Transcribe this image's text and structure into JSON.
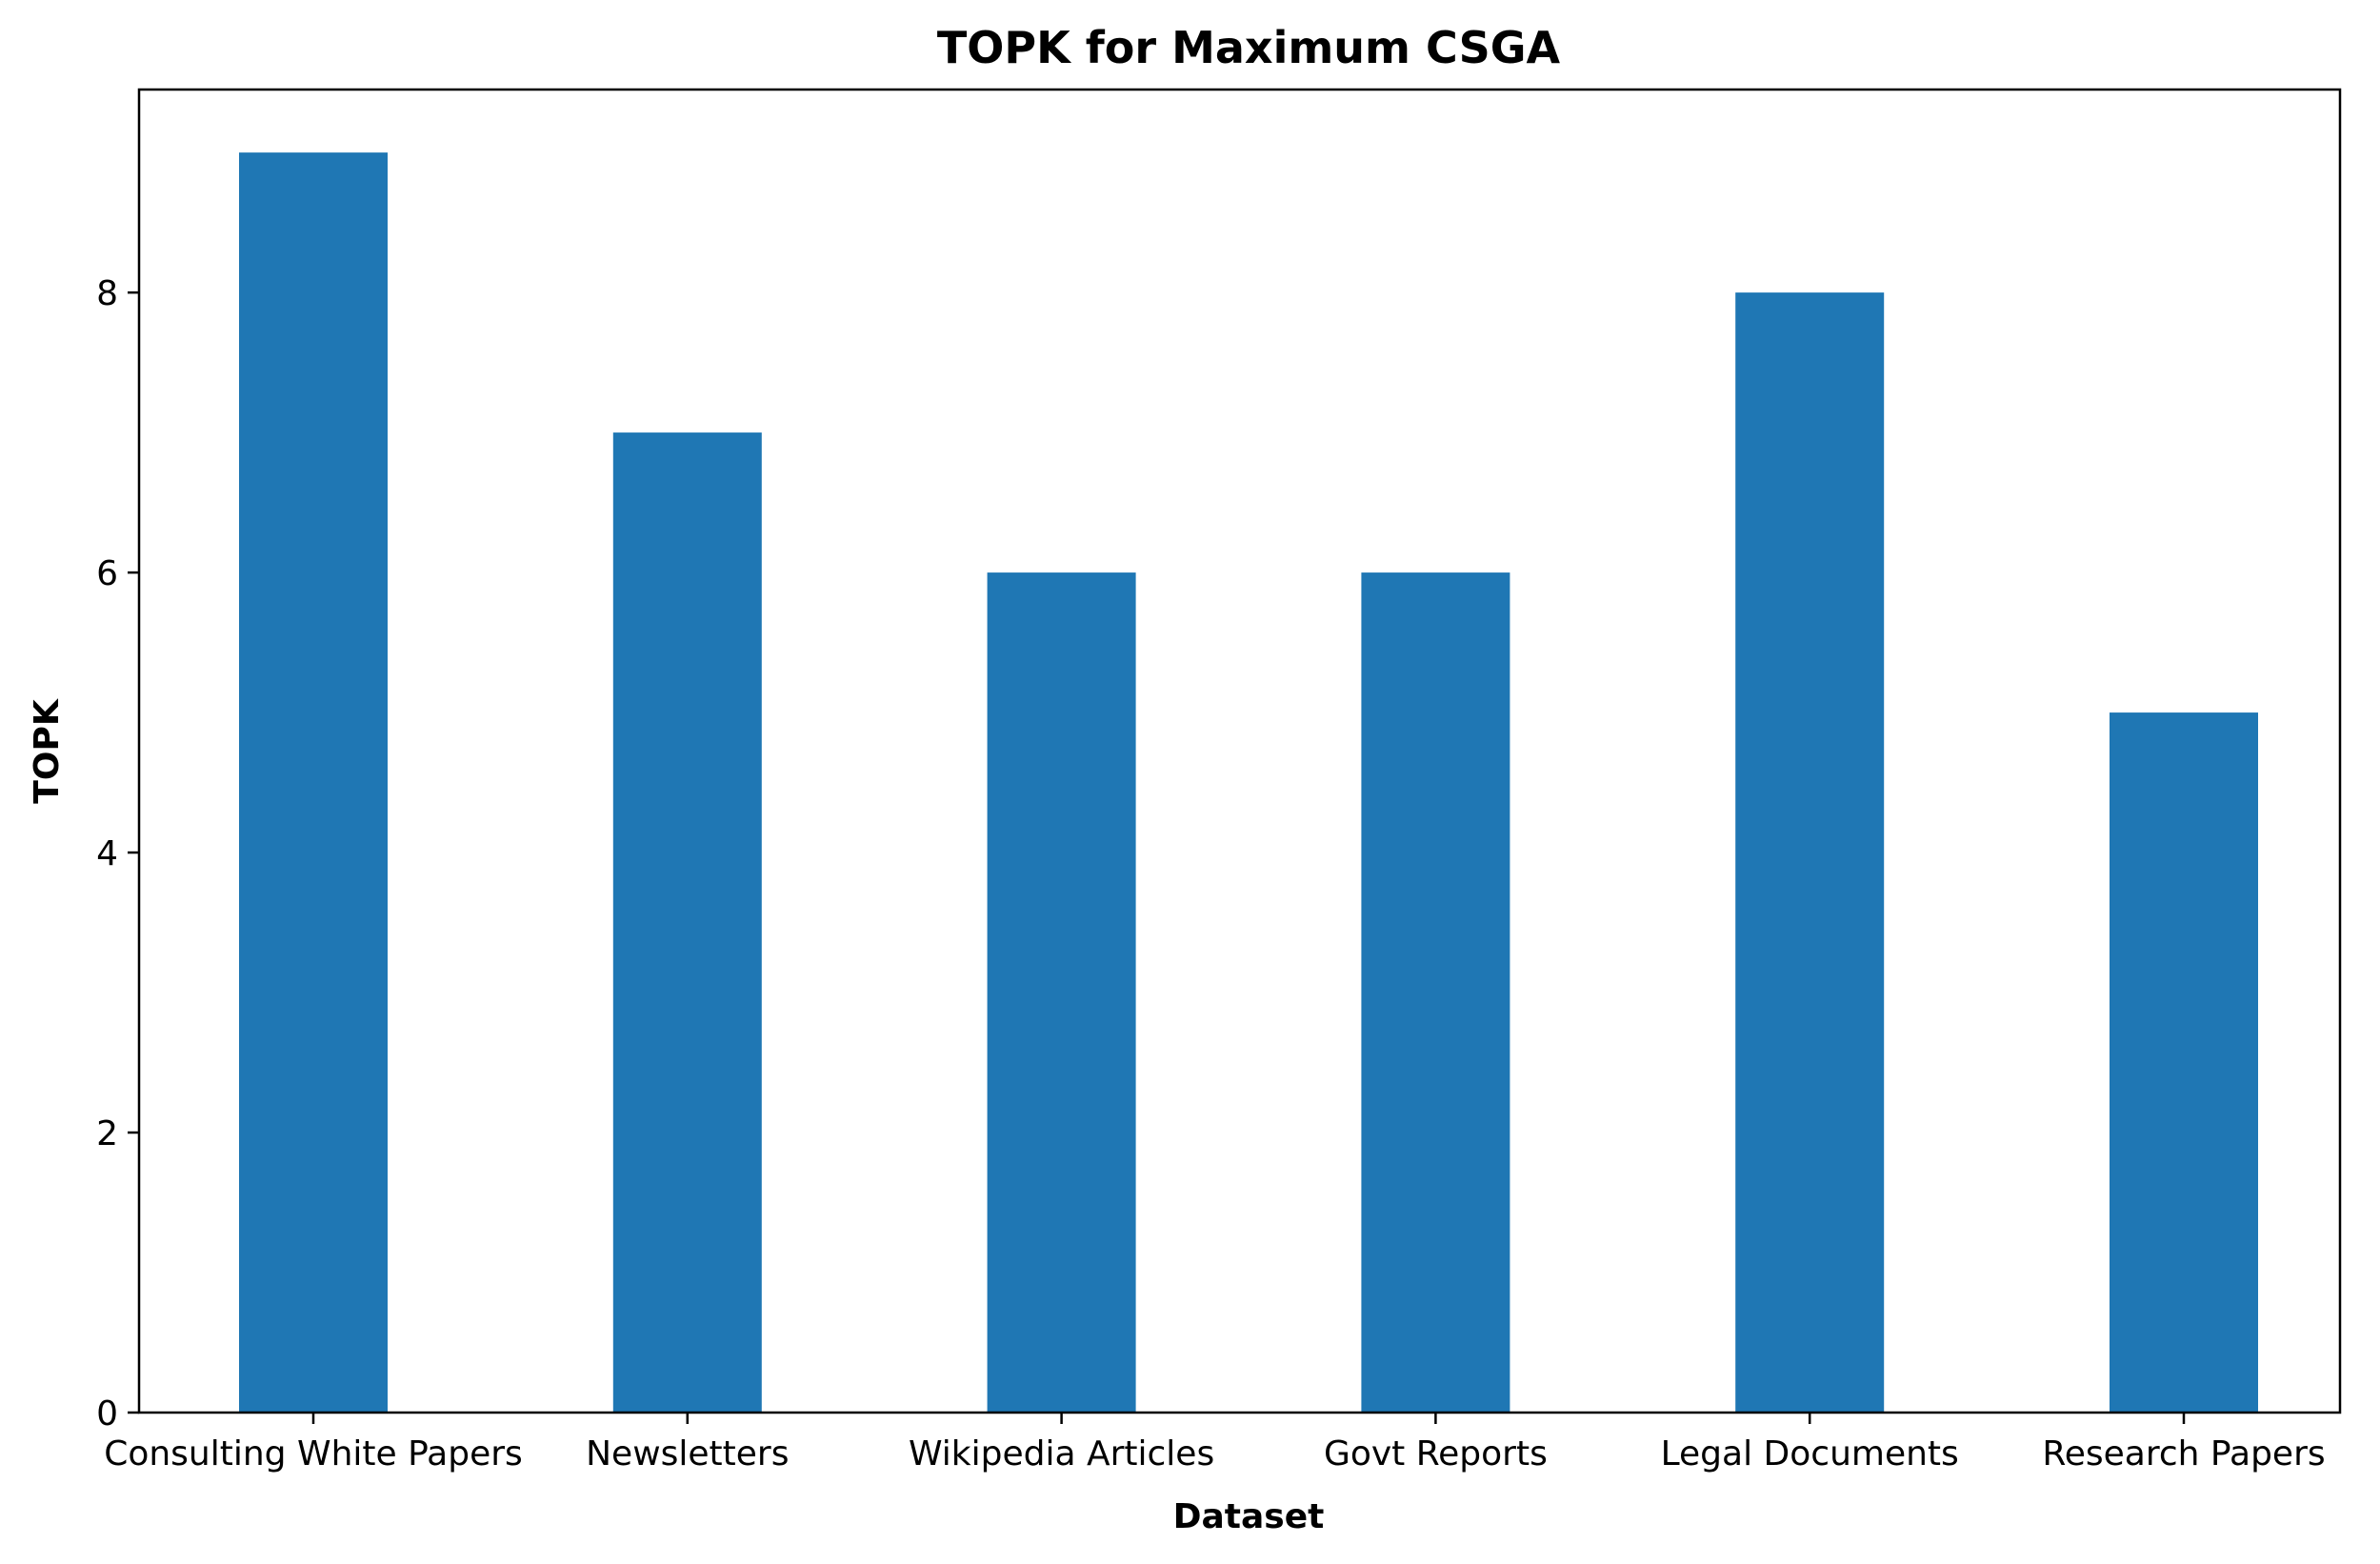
{
  "chart_data": {
    "type": "bar",
    "title": "TOPK for Maximum CSGA",
    "xlabel": "Dataset",
    "ylabel": "TOPK",
    "categories": [
      "Consulting White Papers",
      "Newsletters",
      "Wikipedia Articles",
      "Govt Reports",
      "Legal Documents",
      "Research Papers"
    ],
    "values": [
      9,
      7,
      6,
      6,
      8,
      5
    ],
    "ylim": [
      0,
      9.45
    ],
    "yticks": [
      0,
      2,
      4,
      6,
      8
    ],
    "grid": false,
    "legend": "none",
    "bar_color": "#1f77b4"
  }
}
